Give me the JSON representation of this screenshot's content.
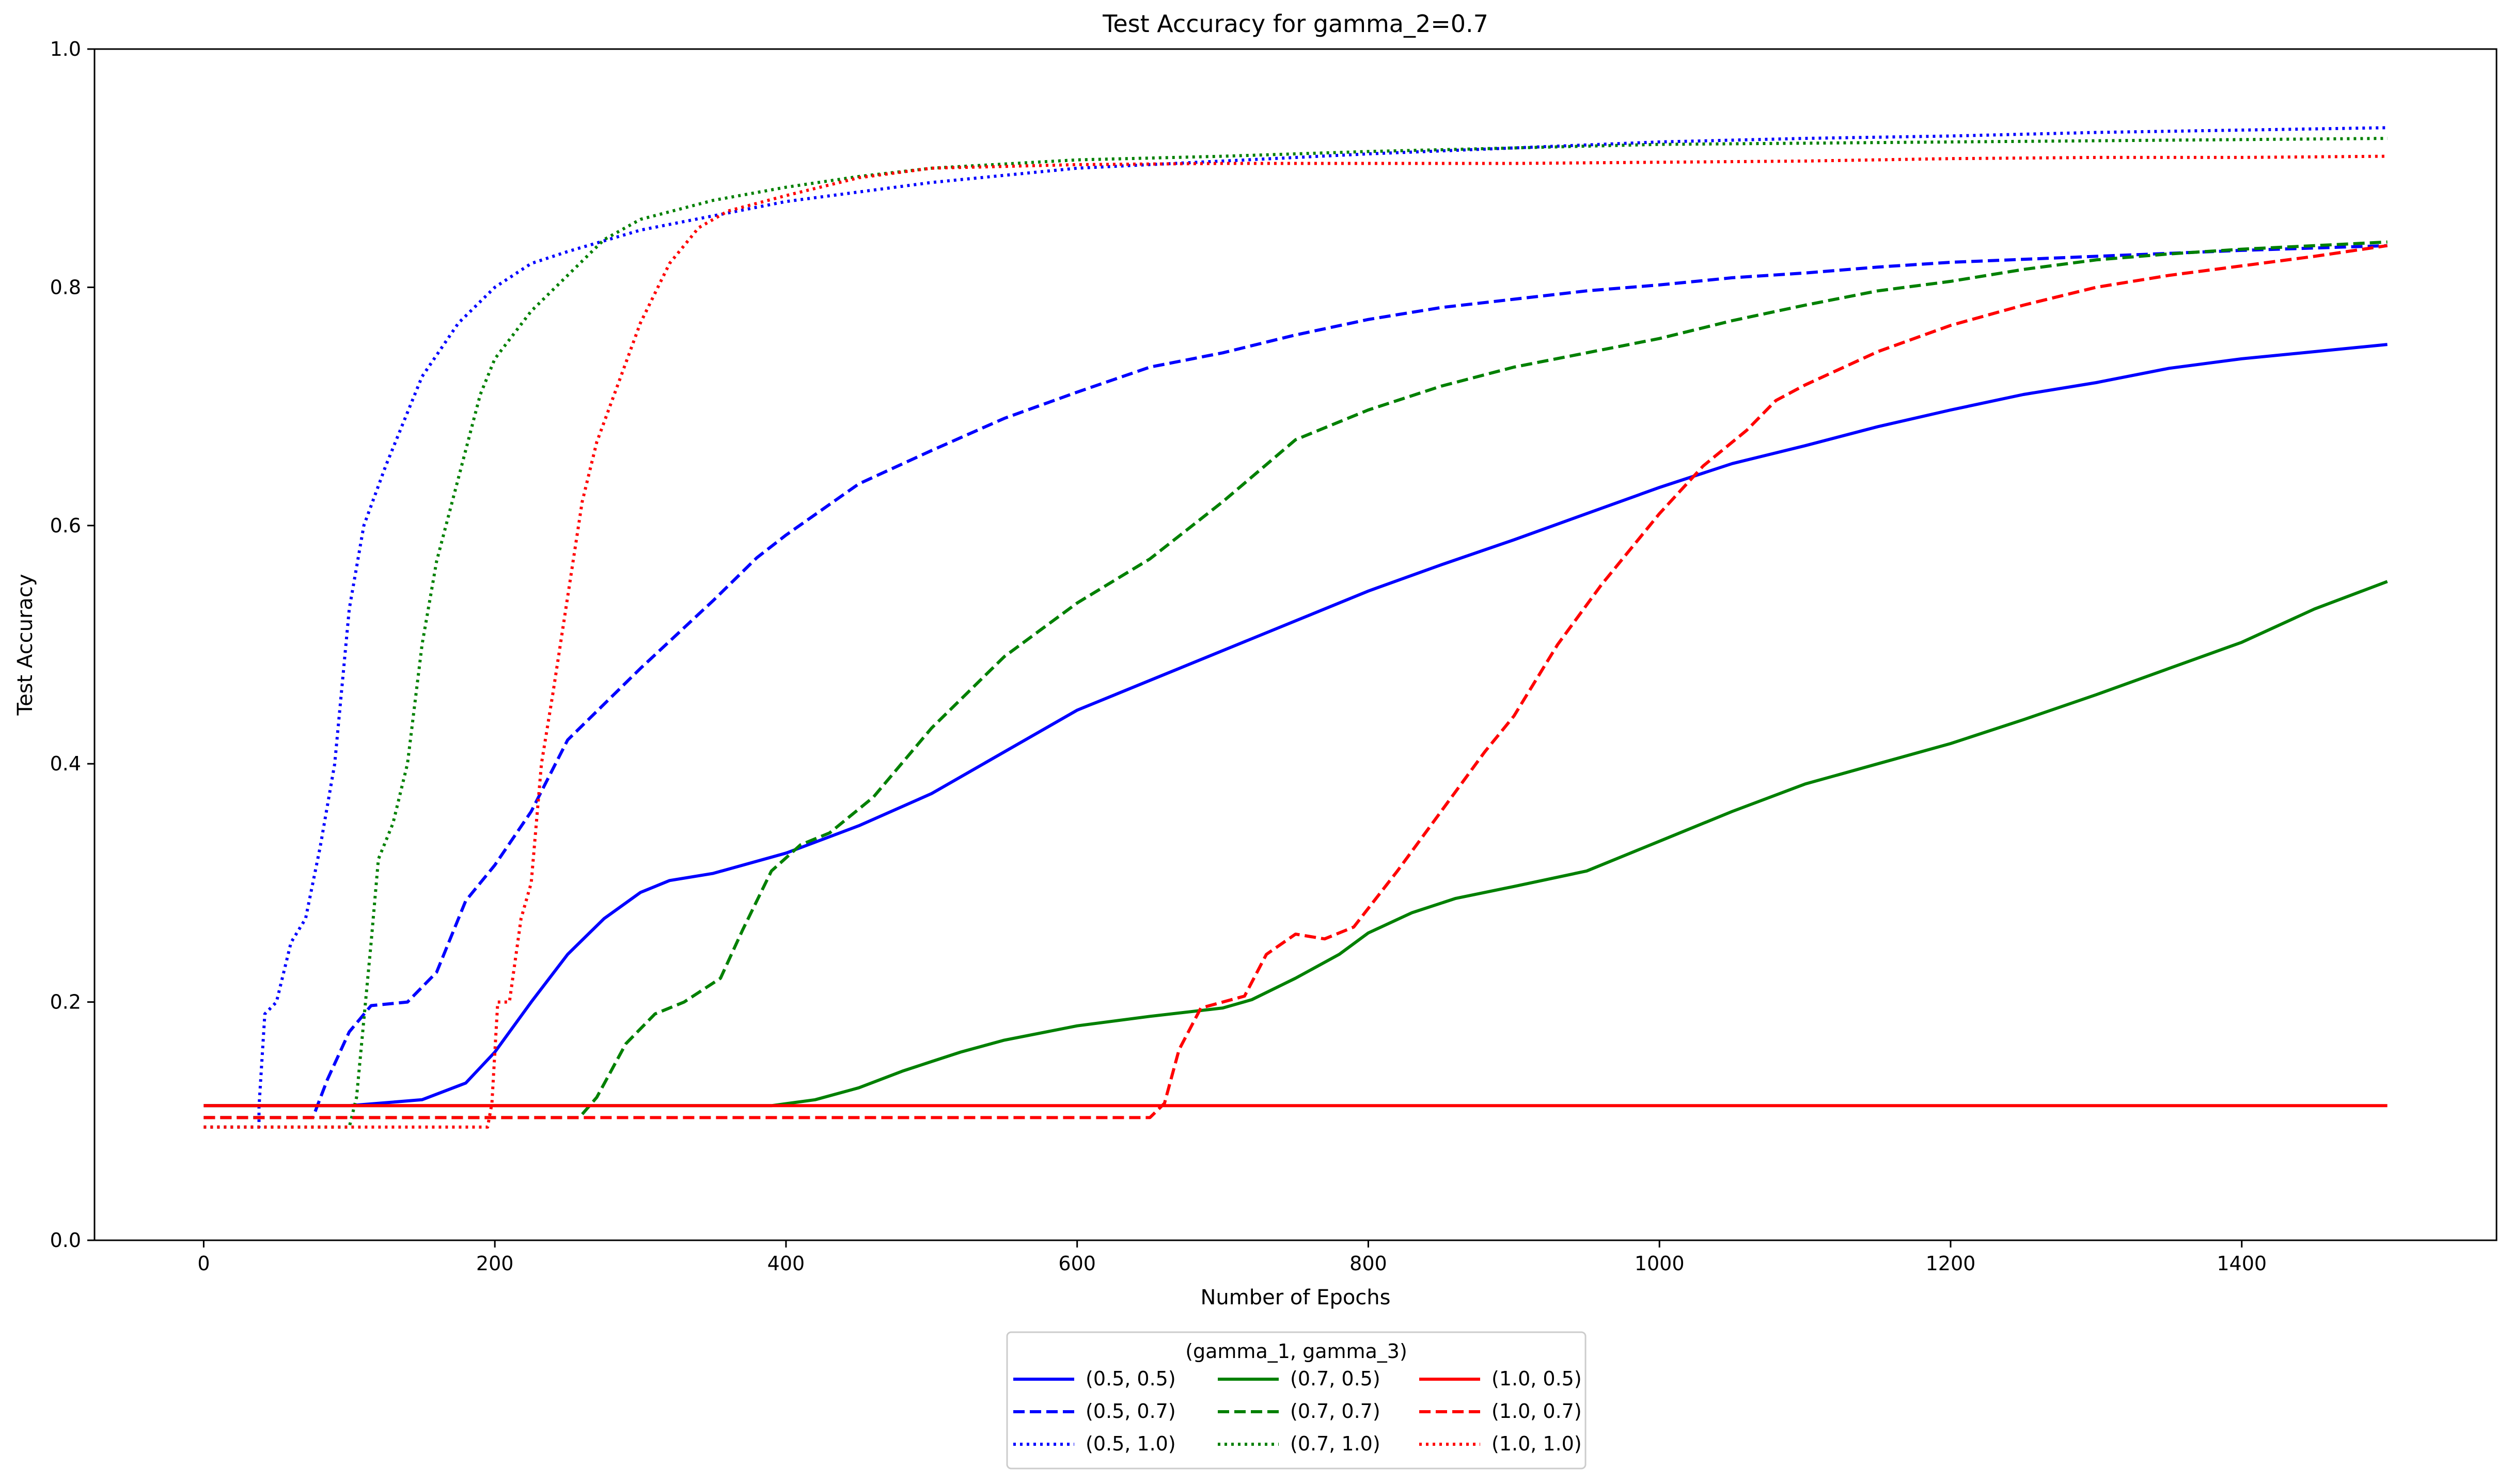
{
  "chart_data": {
    "type": "line",
    "title": "Test Accuracy for gamma_2=0.7",
    "xlabel": "Number of Epochs",
    "ylabel": "Test Accuracy",
    "xlim": [
      -75,
      1575
    ],
    "ylim": [
      0.0,
      1.0
    ],
    "xticks": [
      0,
      200,
      400,
      600,
      800,
      1000,
      1200,
      1400
    ],
    "xtick_labels": [
      "0",
      "200",
      "400",
      "600",
      "800",
      "1000",
      "1200",
      "1400"
    ],
    "yticks": [
      0.0,
      0.2,
      0.4,
      0.6,
      0.8,
      1.0
    ],
    "ytick_labels": [
      "0.0",
      "0.2",
      "0.4",
      "0.6",
      "0.8",
      "1.0"
    ],
    "grid": false,
    "legend": {
      "title": "(gamma_1, gamma_3)",
      "placement": "below-center",
      "columns": 3
    },
    "series": [
      {
        "name": "(0.5, 0.5)",
        "color": "#0000ff",
        "dash": "solid",
        "points": [
          [
            0,
            0.113
          ],
          [
            100,
            0.113
          ],
          [
            150,
            0.118
          ],
          [
            180,
            0.132
          ],
          [
            200,
            0.158
          ],
          [
            225,
            0.2
          ],
          [
            250,
            0.24
          ],
          [
            275,
            0.27
          ],
          [
            300,
            0.292
          ],
          [
            320,
            0.302
          ],
          [
            350,
            0.308
          ],
          [
            400,
            0.325
          ],
          [
            450,
            0.348
          ],
          [
            500,
            0.375
          ],
          [
            550,
            0.41
          ],
          [
            600,
            0.445
          ],
          [
            650,
            0.47
          ],
          [
            700,
            0.495
          ],
          [
            750,
            0.52
          ],
          [
            800,
            0.545
          ],
          [
            850,
            0.567
          ],
          [
            900,
            0.588
          ],
          [
            950,
            0.61
          ],
          [
            1000,
            0.632
          ],
          [
            1050,
            0.652
          ],
          [
            1100,
            0.667
          ],
          [
            1150,
            0.683
          ],
          [
            1200,
            0.697
          ],
          [
            1250,
            0.71
          ],
          [
            1300,
            0.72
          ],
          [
            1350,
            0.732
          ],
          [
            1400,
            0.74
          ],
          [
            1450,
            0.746
          ],
          [
            1500,
            0.752
          ]
        ]
      },
      {
        "name": "(0.5, 0.7)",
        "color": "#0000ff",
        "dash": "dashed",
        "points": [
          [
            0,
            0.103
          ],
          [
            75,
            0.103
          ],
          [
            85,
            0.135
          ],
          [
            100,
            0.175
          ],
          [
            115,
            0.197
          ],
          [
            140,
            0.2
          ],
          [
            160,
            0.225
          ],
          [
            180,
            0.285
          ],
          [
            200,
            0.315
          ],
          [
            225,
            0.36
          ],
          [
            250,
            0.42
          ],
          [
            300,
            0.48
          ],
          [
            350,
            0.537
          ],
          [
            380,
            0.573
          ],
          [
            400,
            0.592
          ],
          [
            450,
            0.635
          ],
          [
            500,
            0.663
          ],
          [
            550,
            0.69
          ],
          [
            600,
            0.712
          ],
          [
            650,
            0.733
          ],
          [
            700,
            0.745
          ],
          [
            750,
            0.76
          ],
          [
            800,
            0.773
          ],
          [
            850,
            0.783
          ],
          [
            900,
            0.79
          ],
          [
            950,
            0.797
          ],
          [
            1000,
            0.802
          ],
          [
            1050,
            0.808
          ],
          [
            1100,
            0.812
          ],
          [
            1150,
            0.817
          ],
          [
            1200,
            0.821
          ],
          [
            1300,
            0.826
          ],
          [
            1400,
            0.831
          ],
          [
            1500,
            0.835
          ]
        ]
      },
      {
        "name": "(0.5, 1.0)",
        "color": "#0000ff",
        "dash": "dotted",
        "points": [
          [
            0,
            0.095
          ],
          [
            38,
            0.095
          ],
          [
            38,
            0.112
          ],
          [
            42,
            0.19
          ],
          [
            50,
            0.2
          ],
          [
            60,
            0.25
          ],
          [
            70,
            0.27
          ],
          [
            80,
            0.33
          ],
          [
            90,
            0.4
          ],
          [
            100,
            0.53
          ],
          [
            110,
            0.6
          ],
          [
            125,
            0.65
          ],
          [
            150,
            0.725
          ],
          [
            175,
            0.77
          ],
          [
            200,
            0.8
          ],
          [
            225,
            0.82
          ],
          [
            250,
            0.83
          ],
          [
            300,
            0.848
          ],
          [
            350,
            0.86
          ],
          [
            400,
            0.872
          ],
          [
            450,
            0.88
          ],
          [
            500,
            0.888
          ],
          [
            600,
            0.9
          ],
          [
            700,
            0.906
          ],
          [
            800,
            0.912
          ],
          [
            900,
            0.917
          ],
          [
            1000,
            0.922
          ],
          [
            1100,
            0.925
          ],
          [
            1200,
            0.927
          ],
          [
            1300,
            0.93
          ],
          [
            1400,
            0.932
          ],
          [
            1500,
            0.934
          ]
        ]
      },
      {
        "name": "(0.7, 0.5)",
        "color": "#008000",
        "dash": "solid",
        "points": [
          [
            0,
            0.113
          ],
          [
            390,
            0.113
          ],
          [
            420,
            0.118
          ],
          [
            450,
            0.128
          ],
          [
            480,
            0.142
          ],
          [
            500,
            0.15
          ],
          [
            520,
            0.158
          ],
          [
            550,
            0.168
          ],
          [
            600,
            0.18
          ],
          [
            650,
            0.188
          ],
          [
            700,
            0.195
          ],
          [
            720,
            0.202
          ],
          [
            750,
            0.22
          ],
          [
            780,
            0.24
          ],
          [
            800,
            0.258
          ],
          [
            830,
            0.275
          ],
          [
            860,
            0.287
          ],
          [
            900,
            0.297
          ],
          [
            950,
            0.31
          ],
          [
            1000,
            0.335
          ],
          [
            1050,
            0.36
          ],
          [
            1100,
            0.383
          ],
          [
            1150,
            0.4
          ],
          [
            1200,
            0.417
          ],
          [
            1250,
            0.437
          ],
          [
            1300,
            0.458
          ],
          [
            1350,
            0.48
          ],
          [
            1400,
            0.502
          ],
          [
            1450,
            0.53
          ],
          [
            1500,
            0.553
          ]
        ]
      },
      {
        "name": "(0.7, 0.7)",
        "color": "#008000",
        "dash": "dashed",
        "points": [
          [
            0,
            0.103
          ],
          [
            258,
            0.103
          ],
          [
            270,
            0.12
          ],
          [
            290,
            0.165
          ],
          [
            310,
            0.19
          ],
          [
            330,
            0.2
          ],
          [
            355,
            0.22
          ],
          [
            370,
            0.26
          ],
          [
            390,
            0.31
          ],
          [
            410,
            0.332
          ],
          [
            430,
            0.342
          ],
          [
            460,
            0.372
          ],
          [
            500,
            0.43
          ],
          [
            550,
            0.49
          ],
          [
            600,
            0.535
          ],
          [
            650,
            0.572
          ],
          [
            700,
            0.62
          ],
          [
            750,
            0.672
          ],
          [
            800,
            0.697
          ],
          [
            850,
            0.717
          ],
          [
            900,
            0.733
          ],
          [
            950,
            0.745
          ],
          [
            1000,
            0.757
          ],
          [
            1050,
            0.772
          ],
          [
            1100,
            0.785
          ],
          [
            1150,
            0.797
          ],
          [
            1200,
            0.805
          ],
          [
            1250,
            0.815
          ],
          [
            1300,
            0.823
          ],
          [
            1350,
            0.828
          ],
          [
            1400,
            0.832
          ],
          [
            1450,
            0.835
          ],
          [
            1500,
            0.838
          ]
        ]
      },
      {
        "name": "(0.7, 1.0)",
        "color": "#008000",
        "dash": "dotted",
        "points": [
          [
            0,
            0.095
          ],
          [
            100,
            0.095
          ],
          [
            105,
            0.12
          ],
          [
            115,
            0.25
          ],
          [
            120,
            0.32
          ],
          [
            130,
            0.35
          ],
          [
            140,
            0.4
          ],
          [
            150,
            0.5
          ],
          [
            160,
            0.57
          ],
          [
            175,
            0.64
          ],
          [
            190,
            0.71
          ],
          [
            200,
            0.74
          ],
          [
            225,
            0.78
          ],
          [
            250,
            0.81
          ],
          [
            275,
            0.84
          ],
          [
            300,
            0.857
          ],
          [
            350,
            0.873
          ],
          [
            400,
            0.884
          ],
          [
            450,
            0.893
          ],
          [
            500,
            0.9
          ],
          [
            600,
            0.907
          ],
          [
            700,
            0.91
          ],
          [
            800,
            0.914
          ],
          [
            900,
            0.917
          ],
          [
            1000,
            0.92
          ],
          [
            1100,
            0.921
          ],
          [
            1200,
            0.922
          ],
          [
            1300,
            0.923
          ],
          [
            1400,
            0.924
          ],
          [
            1500,
            0.925
          ]
        ]
      },
      {
        "name": "(1.0, 0.5)",
        "color": "#ff0000",
        "dash": "solid",
        "points": [
          [
            0,
            0.113
          ],
          [
            1500,
            0.113
          ]
        ]
      },
      {
        "name": "(1.0, 0.7)",
        "color": "#ff0000",
        "dash": "dashed",
        "points": [
          [
            0,
            0.103
          ],
          [
            650,
            0.103
          ],
          [
            660,
            0.115
          ],
          [
            670,
            0.16
          ],
          [
            685,
            0.195
          ],
          [
            700,
            0.2
          ],
          [
            715,
            0.205
          ],
          [
            730,
            0.24
          ],
          [
            750,
            0.257
          ],
          [
            770,
            0.253
          ],
          [
            790,
            0.263
          ],
          [
            820,
            0.31
          ],
          [
            850,
            0.36
          ],
          [
            880,
            0.41
          ],
          [
            900,
            0.44
          ],
          [
            930,
            0.5
          ],
          [
            960,
            0.55
          ],
          [
            1000,
            0.61
          ],
          [
            1030,
            0.65
          ],
          [
            1060,
            0.68
          ],
          [
            1080,
            0.705
          ],
          [
            1100,
            0.718
          ],
          [
            1150,
            0.746
          ],
          [
            1200,
            0.768
          ],
          [
            1250,
            0.785
          ],
          [
            1300,
            0.8
          ],
          [
            1350,
            0.81
          ],
          [
            1400,
            0.818
          ],
          [
            1450,
            0.826
          ],
          [
            1500,
            0.835
          ]
        ]
      },
      {
        "name": "(1.0, 1.0)",
        "color": "#ff0000",
        "dash": "dotted",
        "points": [
          [
            0,
            0.095
          ],
          [
            195,
            0.095
          ],
          [
            198,
            0.115
          ],
          [
            202,
            0.2
          ],
          [
            210,
            0.2
          ],
          [
            218,
            0.27
          ],
          [
            225,
            0.3
          ],
          [
            232,
            0.4
          ],
          [
            240,
            0.46
          ],
          [
            250,
            0.54
          ],
          [
            260,
            0.62
          ],
          [
            270,
            0.67
          ],
          [
            285,
            0.72
          ],
          [
            300,
            0.77
          ],
          [
            320,
            0.82
          ],
          [
            340,
            0.85
          ],
          [
            360,
            0.864
          ],
          [
            400,
            0.877
          ],
          [
            450,
            0.892
          ],
          [
            500,
            0.9
          ],
          [
            600,
            0.903
          ],
          [
            700,
            0.904
          ],
          [
            800,
            0.904
          ],
          [
            900,
            0.904
          ],
          [
            1000,
            0.905
          ],
          [
            1100,
            0.906
          ],
          [
            1200,
            0.908
          ],
          [
            1300,
            0.909
          ],
          [
            1400,
            0.909
          ],
          [
            1500,
            0.91
          ]
        ]
      }
    ]
  }
}
